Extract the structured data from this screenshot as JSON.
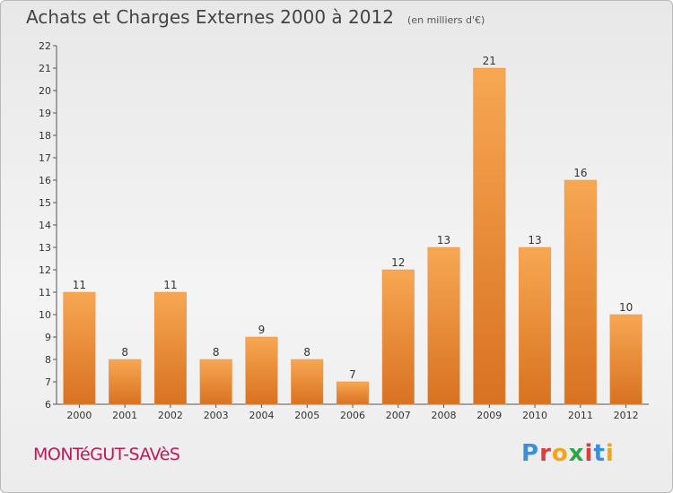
{
  "chart_data": {
    "type": "bar",
    "title": "Achats et Charges Externes 2000 à 2012",
    "subtitle": "(en milliers d'€)",
    "categories": [
      "2000",
      "2001",
      "2002",
      "2003",
      "2004",
      "2005",
      "2006",
      "2007",
      "2008",
      "2009",
      "2010",
      "2011",
      "2012"
    ],
    "values": [
      11,
      8,
      11,
      8,
      9,
      8,
      7,
      12,
      13,
      21,
      13,
      16,
      10
    ],
    "ylim": [
      6,
      22
    ],
    "yticks": [
      6,
      7,
      8,
      9,
      10,
      11,
      12,
      13,
      14,
      15,
      16,
      17,
      18,
      19,
      20,
      21,
      22
    ],
    "grid": false,
    "bar_color_top": "#f7a752",
    "bar_color_bottom": "#d87222"
  },
  "footer": {
    "town": "MONTéGUT-SAVèS",
    "logo_letters": [
      {
        "ch": "P",
        "color": "#3b8fd6"
      },
      {
        "ch": "r",
        "color": "#e23b3b"
      },
      {
        "ch": "o",
        "color": "#f2a51a"
      },
      {
        "ch": "x",
        "color": "#2aa845"
      },
      {
        "ch": "i",
        "color": "#e23b3b"
      },
      {
        "ch": "t",
        "color": "#3b8fd6"
      },
      {
        "ch": "i",
        "color": "#f2a51a"
      }
    ]
  }
}
